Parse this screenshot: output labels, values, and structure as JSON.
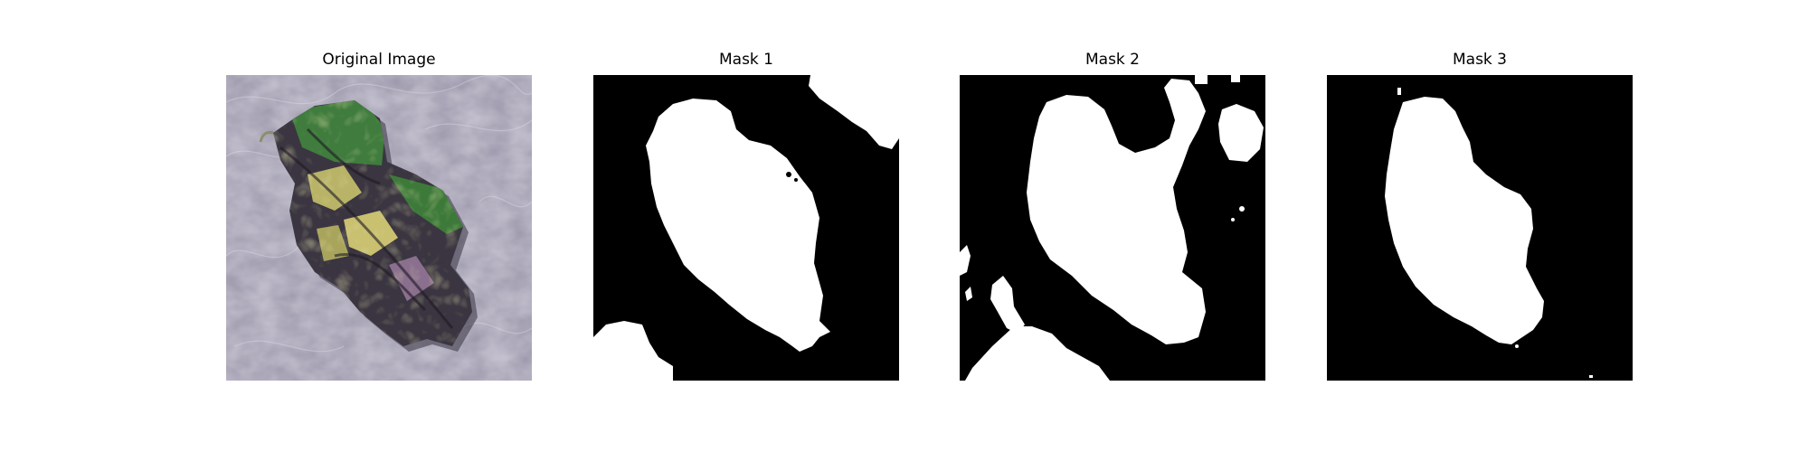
{
  "figure": {
    "panels": [
      {
        "title": "Original Image"
      },
      {
        "title": "Mask 1"
      },
      {
        "title": "Mask 2"
      },
      {
        "title": "Mask 3"
      }
    ]
  },
  "colors": {
    "background": "#ffffff",
    "mask_background": "#000000",
    "mask_foreground": "#ffffff",
    "texture_base": "#8e8a9e",
    "leaf_green": "#3d7a3a",
    "leaf_yellow": "#c9c070",
    "leaf_dark": "#2a2530"
  }
}
